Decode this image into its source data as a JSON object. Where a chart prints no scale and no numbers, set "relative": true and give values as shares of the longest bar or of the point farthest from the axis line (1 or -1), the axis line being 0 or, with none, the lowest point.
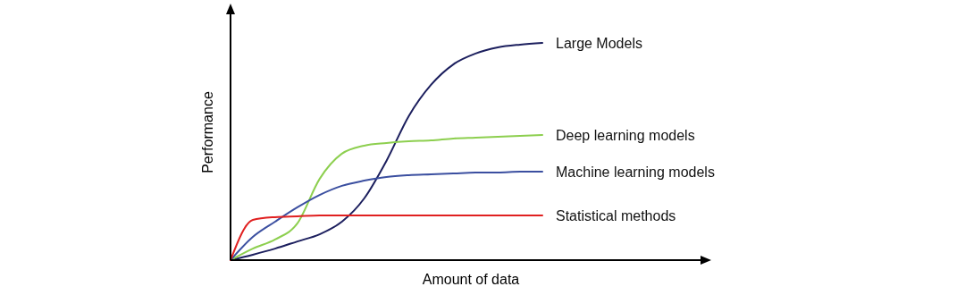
{
  "chart_data": {
    "type": "line",
    "relative": true,
    "xlabel": "Amount of data",
    "ylabel": "Performance",
    "legend": false,
    "marker": "none",
    "line_style": "solid",
    "categories": [
      null,
      null,
      null,
      null,
      null,
      null,
      null,
      null,
      null,
      null,
      null,
      null,
      null,
      null,
      null
    ],
    "series": [
      {
        "name": "Large Models",
        "color": "#1c1f5e",
        "values": [
          0,
          0.025,
          0.053,
          0.086,
          0.119,
          0.177,
          0.284,
          0.457,
          0.663,
          0.807,
          0.901,
          0.951,
          0.979,
          0.992,
          1
        ]
      },
      {
        "name": "Deep learning models",
        "color": "#8dcf4f",
        "values": [
          0,
          0.053,
          0.095,
          0.169,
          0.374,
          0.49,
          0.527,
          0.539,
          0.547,
          0.551,
          0.56,
          0.564,
          0.568,
          0.572,
          0.576
        ]
      },
      {
        "name": "Machine learning models",
        "color": "#3b4fa0",
        "values": [
          0,
          0.107,
          0.177,
          0.243,
          0.3,
          0.342,
          0.366,
          0.383,
          0.391,
          0.395,
          0.399,
          0.403,
          0.403,
          0.407,
          0.407
        ]
      },
      {
        "name": "Statistical methods",
        "color": "#e02020",
        "values": [
          0,
          0.185,
          0.198,
          0.202,
          0.206,
          0.206,
          0.206,
          0.206,
          0.206,
          0.206,
          0.206,
          0.206,
          0.206,
          0.206,
          0.206
        ]
      }
    ]
  }
}
